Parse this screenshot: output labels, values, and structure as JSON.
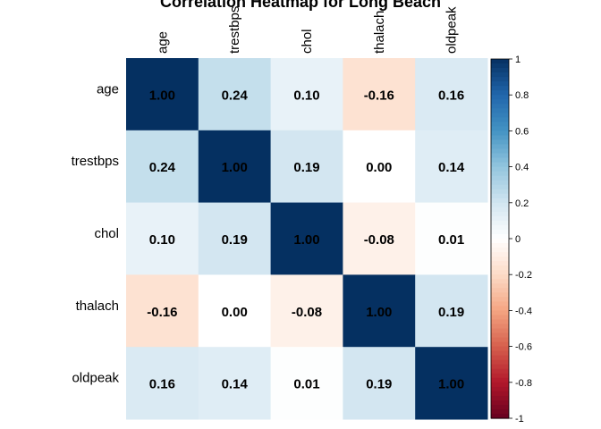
{
  "chart_data": {
    "type": "heatmap",
    "title": "Correlation Heatmap for Long Beach",
    "variables": [
      "age",
      "trestbps",
      "chol",
      "thalach",
      "oldpeak"
    ],
    "matrix": [
      [
        1.0,
        0.24,
        0.1,
        -0.16,
        0.16
      ],
      [
        0.24,
        1.0,
        0.19,
        0.0,
        0.14
      ],
      [
        0.1,
        0.19,
        1.0,
        -0.08,
        0.01
      ],
      [
        -0.16,
        0.0,
        -0.08,
        1.0,
        0.19
      ],
      [
        0.16,
        0.14,
        0.01,
        0.19,
        1.0
      ]
    ],
    "value_labels": [
      [
        "1.00",
        "0.24",
        "0.10",
        "-0.16",
        "0.16"
      ],
      [
        "0.24",
        "1.00",
        "0.19",
        "0.00",
        "0.14"
      ],
      [
        "0.10",
        "0.19",
        "1.00",
        "-0.08",
        "0.01"
      ],
      [
        "-0.16",
        "0.00",
        "-0.08",
        "1.00",
        "0.19"
      ],
      [
        "0.16",
        "0.14",
        "0.01",
        "0.19",
        "1.00"
      ]
    ],
    "colorbar": {
      "range": [
        -1,
        1
      ],
      "ticks": [
        "1",
        "0.8",
        "0.6",
        "0.4",
        "0.2",
        "0",
        "-0.2",
        "-0.4",
        "-0.6",
        "-0.8",
        "-1"
      ],
      "low_color": "#67001F",
      "mid_color": "#FFFFFF",
      "high_color": "#053061"
    }
  }
}
